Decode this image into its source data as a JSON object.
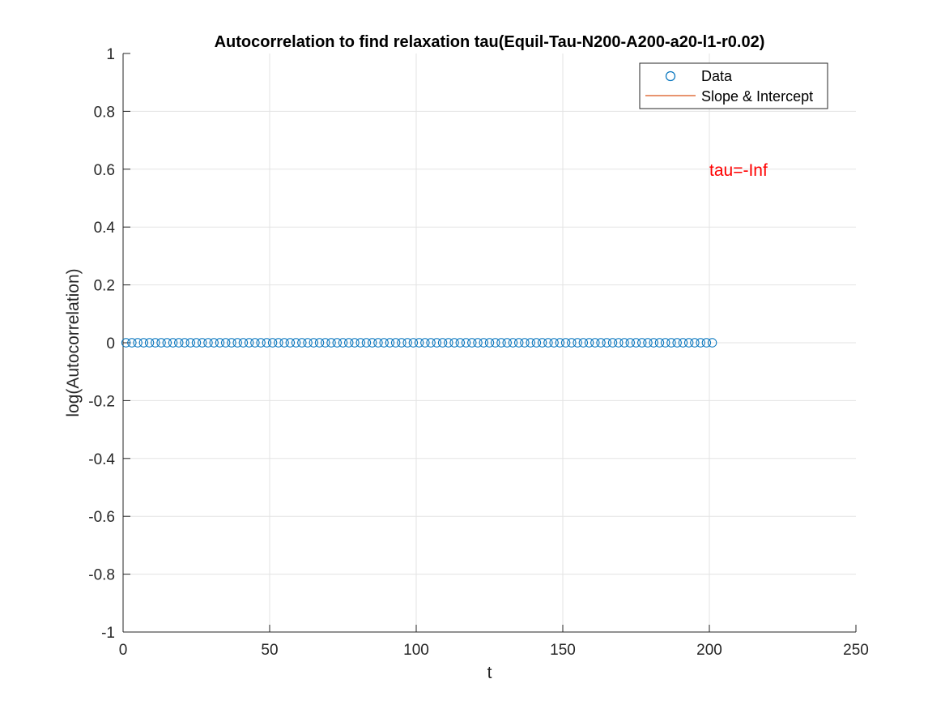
{
  "chart_data": {
    "type": "scatter",
    "title": "Autocorrelation to find relaxation tau(Equil-Tau-N200-A200-a20-l1-r0.02)",
    "xlabel": "t",
    "ylabel": "log(Autocorrelation)",
    "xlim": [
      0,
      250
    ],
    "ylim": [
      -1,
      1
    ],
    "xticks": [
      0,
      50,
      100,
      150,
      200,
      250
    ],
    "yticks": [
      -1,
      -0.8,
      -0.6,
      -0.4,
      -0.2,
      0,
      0.2,
      0.4,
      0.6,
      0.8,
      1
    ],
    "xtick_labels": [
      "0",
      "50",
      "100",
      "150",
      "200",
      "250"
    ],
    "ytick_labels": [
      "-1",
      "-0.8",
      "-0.6",
      "-0.4",
      "-0.2",
      "0",
      "0.2",
      "0.4",
      "0.6",
      "0.8",
      "1"
    ],
    "grid": true,
    "legend_position": "top-right",
    "series": [
      {
        "name": "Data",
        "marker": "circle",
        "color": "#0072BD",
        "x_start": 1,
        "x_end": 201,
        "x_step": 2,
        "y_constant": 0
      },
      {
        "name": "Slope & Intercept",
        "marker": "line",
        "color": "#D95319",
        "x": [],
        "y": []
      }
    ],
    "annotations": [
      {
        "text": "tau=-Inf",
        "x": 200,
        "y": 0.6,
        "color": "#FF0000"
      }
    ]
  }
}
